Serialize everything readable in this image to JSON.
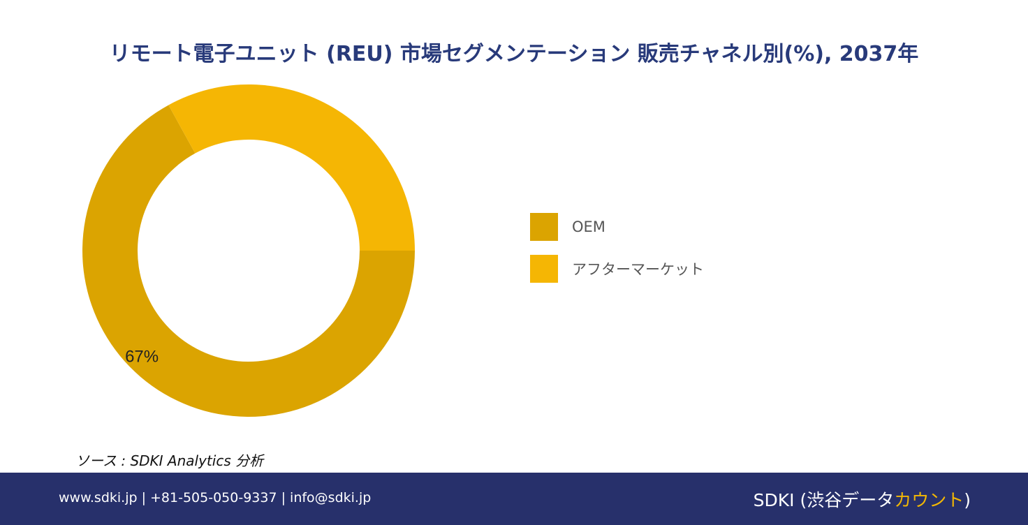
{
  "title": "リモート電子ユニット (REU) 市場セグメンテーション 販売チャネル別(%), 2037年",
  "chart_data": {
    "type": "pie",
    "donut": true,
    "categories": [
      "OEM",
      "アフターマーケット"
    ],
    "values": [
      67,
      33
    ],
    "data_labels": [
      "67%",
      ""
    ],
    "legend_position": "right",
    "colors": [
      "#dba401",
      "#f5b604"
    ]
  },
  "legend": {
    "items": [
      {
        "label": "OEM",
        "color": "#dba401"
      },
      {
        "label": "アフターマーケット",
        "color": "#f5b604"
      }
    ]
  },
  "source": "ソース : SDKI Analytics 分析",
  "footer": {
    "contact": "www.sdki.jp | +81-505-050-9337 | info@sdki.jp",
    "brand_main": "SDKI (渋谷データ",
    "brand_accent": "カウント",
    "brand_close": ")",
    "accent_color": "#f2b705",
    "background_color": "#27306b"
  }
}
